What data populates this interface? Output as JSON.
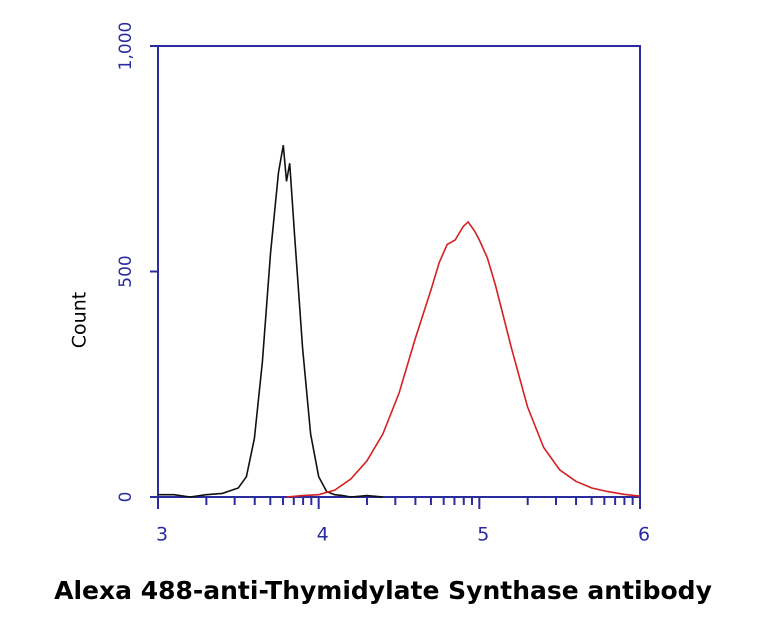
{
  "chart_data": {
    "type": "line",
    "title": "Alexa 488-anti-Thymidylate Synthase antibody",
    "ylabel": "Count",
    "xlim": [
      3,
      6
    ],
    "xticks": [
      3,
      4,
      5,
      6
    ],
    "ylim": [
      0,
      1000
    ],
    "yticks": [
      0,
      500,
      {
        "value": 1000,
        "label": "1,000"
      }
    ],
    "axis_color": "#2b2ba0",
    "series": [
      {
        "color": "#111111",
        "x": [
          3.0,
          3.1,
          3.2,
          3.3,
          3.4,
          3.5,
          3.55,
          3.6,
          3.65,
          3.7,
          3.75,
          3.78,
          3.8,
          3.82,
          3.85,
          3.9,
          3.95,
          4.0,
          4.05,
          4.1,
          4.15,
          4.2,
          4.3,
          4.4
        ],
        "values": [
          5,
          5,
          0,
          5,
          8,
          20,
          45,
          130,
          300,
          540,
          720,
          780,
          700,
          740,
          580,
          330,
          140,
          45,
          12,
          5,
          3,
          0,
          3,
          0
        ]
      },
      {
        "color": "#d42020",
        "x": [
          3.8,
          3.9,
          4.0,
          4.1,
          4.2,
          4.3,
          4.4,
          4.5,
          4.6,
          4.7,
          4.75,
          4.8,
          4.85,
          4.9,
          4.93,
          4.97,
          5.0,
          5.05,
          5.1,
          5.2,
          5.3,
          5.4,
          5.5,
          5.6,
          5.7,
          5.8,
          5.9,
          6.0
        ],
        "values": [
          0,
          3,
          5,
          15,
          40,
          80,
          140,
          230,
          350,
          460,
          520,
          560,
          570,
          600,
          610,
          590,
          570,
          530,
          470,
          330,
          200,
          110,
          60,
          35,
          20,
          12,
          6,
          2
        ]
      }
    ]
  }
}
